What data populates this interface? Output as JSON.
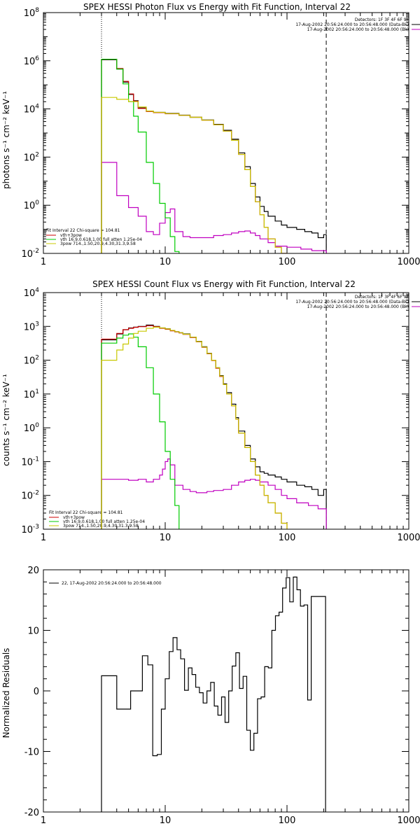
{
  "chart_data": [
    {
      "type": "line",
      "title": "SPEX HESSI Photon Flux vs Energy with Fit Function, Interval 22",
      "ylabel": "photons s⁻¹ cm⁻² keV⁻¹",
      "xscale": "log",
      "yscale": "log",
      "xlim": [
        1,
        1000
      ],
      "ylim": [
        0.01,
        100000000
      ],
      "xticks": [
        "1",
        "10",
        "100",
        "1000"
      ],
      "yticks": [
        "10⁻²",
        "10⁰",
        "10²",
        "10⁴",
        "10⁶",
        "10⁸"
      ],
      "vlines": [
        {
          "x": 3,
          "style": "dotted"
        },
        {
          "x": 210,
          "style": "dashed"
        }
      ],
      "header": [
        "Detectors: 1F 3F 4F 6F 9F",
        "17-Aug-2002 20:56:24.000 to 20:56:48.000 (Data-Bk)",
        "17-Aug-2002 20:56:24.000 to 20:56:48.000 (Bk)"
      ],
      "fit_legend": [
        "Fit Interval 22    Chi-square = 104.81",
        "vth+3pow",
        "vth 16.9,0.618,1.00  full atten 1.25e-04",
        "3pow 714.,1.50,20.9,4.30,31.3,9.58"
      ],
      "series": [
        {
          "name": "Data-Bk",
          "color": "#000000",
          "x": [
            3,
            3.5,
            4,
            4.5,
            5,
            5.5,
            6,
            7,
            8,
            10,
            13,
            16,
            20,
            25,
            30,
            35,
            40,
            45,
            50,
            55,
            60,
            65,
            70,
            80,
            90,
            100,
            120,
            140,
            160,
            180,
            200,
            210
          ],
          "y": [
            1100000,
            1100000,
            450000,
            130000,
            40000,
            22000,
            11000,
            8000,
            7200,
            6500,
            5500,
            4500,
            3500,
            2300,
            1300,
            550,
            150,
            40,
            8,
            2.2,
            0.9,
            0.55,
            0.35,
            0.22,
            0.15,
            0.12,
            0.1,
            0.08,
            0.07,
            0.045,
            0.06,
            0.06
          ]
        },
        {
          "name": "Bk",
          "color": "#c000c0",
          "x": [
            3,
            4,
            5,
            6,
            7,
            8,
            9,
            10,
            11,
            12,
            14,
            16,
            20,
            25,
            30,
            35,
            40,
            45,
            50,
            55,
            60,
            70,
            80,
            100,
            130,
            160,
            210
          ],
          "y": [
            60,
            2.5,
            0.8,
            0.35,
            0.08,
            0.06,
            0.18,
            0.5,
            0.7,
            0.08,
            0.05,
            0.045,
            0.045,
            0.055,
            0.06,
            0.07,
            0.08,
            0.085,
            0.07,
            0.055,
            0.04,
            0.028,
            0.02,
            0.018,
            0.015,
            0.013,
            0.013
          ]
        },
        {
          "name": "vth+3pow",
          "color": "#cc0000",
          "x": [
            3,
            3.5,
            4,
            4.5,
            5,
            5.5,
            6,
            7,
            8,
            10,
            13,
            16,
            20,
            25,
            30,
            35,
            40,
            45,
            50,
            55,
            60,
            65,
            70,
            80,
            90,
            100
          ],
          "y": [
            1150000,
            1150000,
            480000,
            140000,
            42000,
            21000,
            10500,
            7800,
            7000,
            6300,
            5400,
            4500,
            3400,
            2200,
            1200,
            500,
            130,
            30,
            6,
            1.4,
            0.4,
            0.12,
            0.04,
            0.018,
            0.01,
            0.006
          ]
        },
        {
          "name": "vth",
          "color": "#00cc00",
          "x": [
            3,
            3.5,
            4,
            4.5,
            5,
            5.5,
            6,
            7,
            8,
            9,
            10,
            11,
            12,
            13
          ],
          "y": [
            1150000,
            1150000,
            450000,
            110000,
            20000,
            5000,
            1100,
            60,
            8,
            1.2,
            0.3,
            0.05,
            0.012,
            0.004
          ]
        },
        {
          "name": "3pow",
          "color": "#c8c800",
          "x": [
            3,
            4,
            5,
            6,
            7,
            8,
            10,
            13,
            16,
            20,
            25,
            30,
            35,
            40,
            45,
            50,
            55,
            60,
            65,
            70,
            80,
            90,
            100
          ],
          "y": [
            30000,
            25000,
            20000,
            12000,
            8200,
            7200,
            6400,
            5400,
            4500,
            3400,
            2200,
            1200,
            500,
            130,
            30,
            6,
            1.4,
            0.4,
            0.12,
            0.04,
            0.018,
            0.01,
            0.006
          ]
        }
      ]
    },
    {
      "type": "line",
      "title": "SPEX HESSI Count Flux vs Energy with Fit Function, Interval 22",
      "ylabel": "counts s⁻¹ cm⁻² keV⁻¹",
      "xscale": "log",
      "yscale": "log",
      "xlim": [
        1,
        1000
      ],
      "ylim": [
        0.001,
        10000
      ],
      "xticks": [
        "1",
        "10",
        "100",
        "1000"
      ],
      "yticks": [
        "10⁻³",
        "10⁻²",
        "10⁻¹",
        "10⁰",
        "10¹",
        "10²",
        "10³",
        "10⁴"
      ],
      "vlines": [
        {
          "x": 3,
          "style": "dotted"
        },
        {
          "x": 210,
          "style": "dashed"
        }
      ],
      "header": [
        "Detectors: 1F 3F 4F 6F 9F",
        "17-Aug-2002 20:56:24.000 to 20:56:48.000 (Data-Bk)",
        "17-Aug-2002 20:56:24.000 to 20:56:48.000 (Bk)"
      ],
      "fit_legend": [
        "Fit Interval 22    Chi-square = 104.81",
        "vth+3pow",
        "vth 16.9,0.618,1.00  full atten 1.25e-04",
        "3pow 714.,1.50,20.9,4.30,31.3,9.58"
      ],
      "series": [
        {
          "name": "Data-Bk",
          "color": "#000000",
          "x": [
            3,
            3.5,
            4,
            4.5,
            5,
            5.5,
            6,
            7,
            8,
            9,
            10,
            11,
            12,
            13,
            14,
            16,
            18,
            20,
            22,
            24,
            26,
            28,
            30,
            32,
            35,
            38,
            40,
            45,
            50,
            55,
            60,
            65,
            70,
            80,
            90,
            100,
            120,
            140,
            160,
            180,
            200,
            210
          ],
          "y": [
            400,
            400,
            600,
            800,
            900,
            950,
            1000,
            1100,
            1000,
            900,
            850,
            750,
            700,
            650,
            600,
            480,
            360,
            250,
            160,
            100,
            60,
            35,
            20,
            11,
            5,
            2,
            0.8,
            0.3,
            0.12,
            0.07,
            0.05,
            0.045,
            0.04,
            0.035,
            0.03,
            0.025,
            0.02,
            0.018,
            0.015,
            0.01,
            0.015,
            0.015
          ]
        },
        {
          "name": "Bk",
          "color": "#c000c0",
          "x": [
            3,
            4,
            5,
            6,
            7,
            8,
            9,
            9.5,
            10,
            10.5,
            11,
            12,
            14,
            16,
            18,
            20,
            22,
            25,
            30,
            35,
            40,
            45,
            50,
            55,
            60,
            70,
            80,
            90,
            100,
            120,
            150,
            180,
            210
          ],
          "y": [
            0.03,
            0.03,
            0.028,
            0.03,
            0.025,
            0.03,
            0.04,
            0.06,
            0.1,
            0.12,
            0.08,
            0.02,
            0.015,
            0.013,
            0.012,
            0.012,
            0.013,
            0.014,
            0.015,
            0.02,
            0.025,
            0.028,
            0.03,
            0.028,
            0.025,
            0.02,
            0.015,
            0.01,
            0.008,
            0.006,
            0.005,
            0.004,
            0.0035
          ]
        },
        {
          "name": "vth+3pow",
          "color": "#cc0000",
          "x": [
            3,
            3.5,
            4,
            4.5,
            5,
            5.5,
            6,
            7,
            8,
            9,
            10,
            11,
            12,
            13,
            14,
            16,
            18,
            20,
            22,
            24,
            26,
            28,
            30,
            32,
            35,
            38,
            40,
            45,
            50,
            55,
            60,
            65,
            70,
            80,
            90,
            100
          ],
          "y": [
            420,
            420,
            620,
            800,
            880,
            940,
            980,
            1050,
            980,
            880,
            820,
            740,
            690,
            640,
            580,
            470,
            350,
            240,
            155,
            98,
            58,
            33,
            19,
            10,
            4.5,
            1.8,
            0.7,
            0.26,
            0.1,
            0.04,
            0.02,
            0.01,
            0.006,
            0.003,
            0.0015,
            0.001
          ]
        },
        {
          "name": "vth",
          "color": "#00cc00",
          "x": [
            3,
            3.5,
            4,
            4.5,
            5,
            5.5,
            6,
            7,
            8,
            9,
            10,
            11,
            12,
            13
          ],
          "y": [
            320,
            320,
            450,
            550,
            600,
            480,
            250,
            60,
            10,
            1.5,
            0.2,
            0.03,
            0.005,
            0.001
          ]
        },
        {
          "name": "3pow",
          "color": "#c8c800",
          "x": [
            3,
            3.5,
            4,
            4.5,
            5,
            5.5,
            6,
            7,
            8,
            9,
            10,
            11,
            12,
            13,
            14,
            16,
            18,
            20,
            22,
            24,
            26,
            28,
            30,
            32,
            35,
            38,
            40,
            45,
            50,
            55,
            60,
            65,
            70,
            80,
            90,
            100
          ],
          "y": [
            100,
            100,
            200,
            300,
            450,
            620,
            720,
            880,
            950,
            900,
            840,
            760,
            700,
            650,
            590,
            480,
            355,
            245,
            158,
            100,
            60,
            34,
            19,
            10,
            4.5,
            1.8,
            0.7,
            0.26,
            0.1,
            0.04,
            0.02,
            0.01,
            0.006,
            0.003,
            0.0015,
            0.001
          ]
        }
      ]
    },
    {
      "type": "line",
      "ylabel": "Normalized Residuals",
      "xscale": "log",
      "yscale": "linear",
      "xlim": [
        1,
        1000
      ],
      "ylim": [
        -20,
        20
      ],
      "xticks": [
        "1",
        "10",
        "100",
        "1000"
      ],
      "yticks": [
        "-20",
        "-10",
        "0",
        "10",
        "20"
      ],
      "legend": "22, 17-Aug-2002 20:56:24.000 to 20:56:48.000",
      "series": [
        {
          "name": "22, 17-Aug-2002 20:56:24.000 to 20:56:48.000",
          "color": "#000000",
          "step": true,
          "x": [
            3,
            4,
            4.6,
            5.2,
            5.8,
            6.5,
            7.2,
            7.9,
            8.6,
            9.3,
            10,
            10.8,
            11.6,
            12.5,
            13.4,
            14.4,
            15.5,
            16.6,
            17.8,
            19.1,
            20.5,
            22,
            23.6,
            25.3,
            27.1,
            29,
            31,
            33.2,
            35.5,
            38,
            40.7,
            43.6,
            46.7,
            50,
            53.5,
            57.3,
            61.3,
            65.6,
            70.2,
            75.1,
            80.4,
            86,
            92,
            98.4,
            105.3,
            112.7,
            120.6,
            129,
            138,
            147.7,
            158,
            169.1,
            181,
            193.6,
            207.2
          ],
          "y": [
            2.5,
            -3,
            -3,
            0,
            0,
            5.8,
            4.3,
            -10.7,
            -10.5,
            -3,
            2,
            6.5,
            8.8,
            6.8,
            5.3,
            0.1,
            3.8,
            2.7,
            0.6,
            -0.3,
            -2,
            0,
            1.4,
            -2.5,
            -4,
            -1,
            -5.2,
            0,
            4.1,
            6.3,
            0.4,
            2.4,
            -6.5,
            -9.8,
            -7,
            -1.3,
            -1,
            4,
            3.8,
            10,
            12.4,
            13,
            17,
            18.7,
            14.7,
            18.8,
            16.7,
            14,
            14.2,
            -1.5,
            15.6,
            15.6,
            15.6,
            15.6,
            15.6
          ]
        }
      ]
    }
  ]
}
